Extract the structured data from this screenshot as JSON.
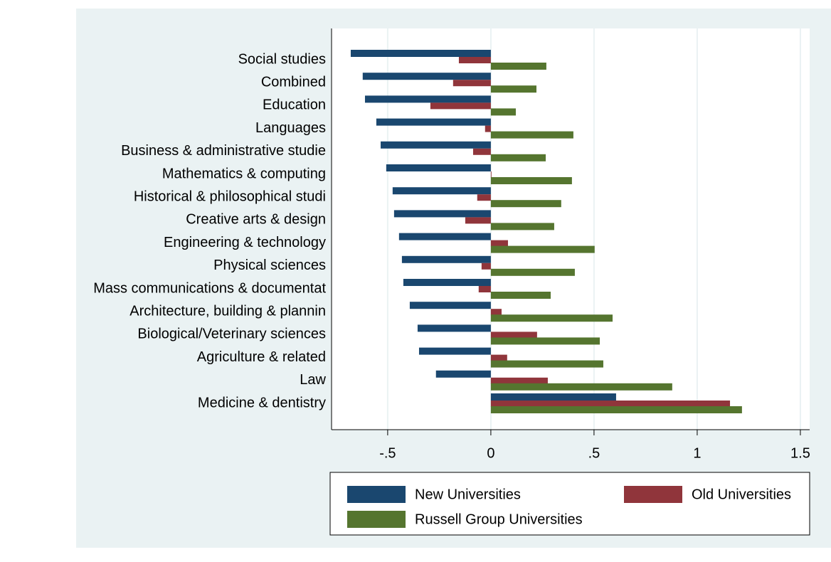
{
  "chart_data": {
    "type": "hbar",
    "categories": [
      "Social studies",
      "Combined",
      "Education",
      "Languages",
      "Business & administrative studie",
      "Mathematics & computing",
      "Historical & philosophical studi",
      "Creative arts & design",
      "Engineering & technology",
      "Physical sciences",
      "Mass communications & documentat",
      "Architecture, building & plannin",
      "Biological/Veterinary sciences",
      "Agriculture & related",
      "Law",
      "Medicine & dentistry"
    ],
    "series": [
      {
        "name": "New Universities",
        "color": "#1a476f",
        "values": [
          -0.679,
          -0.621,
          -0.61,
          -0.555,
          -0.534,
          -0.507,
          -0.476,
          -0.469,
          -0.445,
          -0.431,
          -0.424,
          -0.393,
          -0.355,
          -0.348,
          -0.266,
          0.607
        ]
      },
      {
        "name": "Old Universities",
        "color": "#90353b",
        "values": [
          -0.155,
          -0.183,
          -0.293,
          -0.028,
          -0.086,
          0.003,
          -0.066,
          -0.124,
          0.083,
          -0.045,
          -0.059,
          0.052,
          0.224,
          0.079,
          0.276,
          1.159
        ]
      },
      {
        "name": "Russell Group Universities",
        "color": "#55752f",
        "values": [
          0.269,
          0.221,
          0.121,
          0.4,
          0.266,
          0.393,
          0.341,
          0.307,
          0.503,
          0.407,
          0.29,
          0.59,
          0.528,
          0.545,
          0.879,
          1.217
        ]
      }
    ],
    "xlim": [
      -0.772,
      1.545
    ],
    "xticks": [
      {
        "value": -0.5,
        "label": "-.5"
      },
      0,
      {
        "value": 0.5,
        "label": ".5"
      },
      1,
      {
        "value": 1.5,
        "label": "1.5"
      }
    ],
    "grid": true
  }
}
